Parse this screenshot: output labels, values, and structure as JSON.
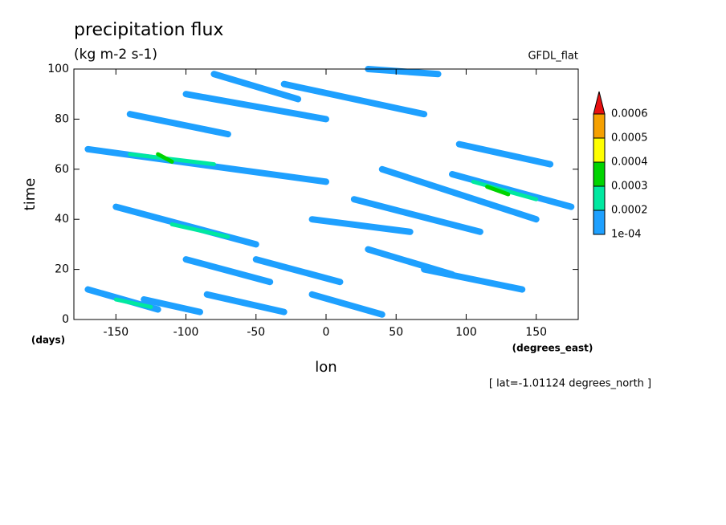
{
  "chart_data": {
    "type": "contour",
    "title": "precipitation flux",
    "subtitle": "(kg m-2 s-1)",
    "dataset": "GFDL_flat",
    "x_label": "lon",
    "x_units": "(degrees_east)",
    "y_label": "time",
    "y_units": "(days)",
    "note": "[ lat=-1.01124 degrees_north ]",
    "xlim": [
      -180,
      180
    ],
    "xticks": [
      -150,
      -100,
      -50,
      0,
      50,
      100,
      150
    ],
    "ylim": [
      0,
      100
    ],
    "yticks": [
      0,
      20,
      40,
      60,
      80,
      100
    ],
    "levels": [
      {
        "value": 0.0001,
        "label": "1e-04"
      },
      0.0002,
      0.0003,
      0.0004,
      0.0005,
      0.0006
    ],
    "colors": [
      "#1ea0ff",
      "#00e8a0",
      "#00d400",
      "#ffff00",
      "#f5a000",
      "#e81010"
    ],
    "streaks": [
      {
        "lon": [
          -170,
          -120
        ],
        "time": [
          12,
          4
        ],
        "value": 0.0001
      },
      {
        "lon": [
          -150,
          -125
        ],
        "time": [
          8,
          5
        ],
        "value": 0.0002
      },
      {
        "lon": [
          -130,
          -90
        ],
        "time": [
          8,
          3
        ],
        "value": 0.0001
      },
      {
        "lon": [
          -85,
          -30
        ],
        "time": [
          10,
          3
        ],
        "value": 0.0001
      },
      {
        "lon": [
          -10,
          40
        ],
        "time": [
          10,
          2
        ],
        "value": 0.0001
      },
      {
        "lon": [
          -100,
          -40
        ],
        "time": [
          24,
          15
        ],
        "value": 0.0001
      },
      {
        "lon": [
          -50,
          10
        ],
        "time": [
          24,
          15
        ],
        "value": 0.0001
      },
      {
        "lon": [
          30,
          90
        ],
        "time": [
          28,
          18
        ],
        "value": 0.0001
      },
      {
        "lon": [
          70,
          140
        ],
        "time": [
          20,
          12
        ],
        "value": 0.0001
      },
      {
        "lon": [
          -150,
          -50
        ],
        "time": [
          45,
          30
        ],
        "value": 0.0001
      },
      {
        "lon": [
          -110,
          -70
        ],
        "time": [
          38,
          33
        ],
        "value": 0.0002
      },
      {
        "lon": [
          -10,
          60
        ],
        "time": [
          40,
          35
        ],
        "value": 0.0001
      },
      {
        "lon": [
          20,
          110
        ],
        "time": [
          48,
          35
        ],
        "value": 0.0001
      },
      {
        "lon": [
          -170,
          0
        ],
        "time": [
          68,
          55
        ],
        "value": 0.0001
      },
      {
        "lon": [
          -140,
          -80
        ],
        "time": [
          66,
          62
        ],
        "value": 0.0002
      },
      {
        "lon": [
          -120,
          -110
        ],
        "time": [
          66,
          63
        ],
        "value": 0.0003
      },
      {
        "lon": [
          90,
          175
        ],
        "time": [
          58,
          45
        ],
        "value": 0.0001
      },
      {
        "lon": [
          105,
          150
        ],
        "time": [
          55,
          48
        ],
        "value": 0.0002
      },
      {
        "lon": [
          115,
          130
        ],
        "time": [
          53,
          50
        ],
        "value": 0.0003
      },
      {
        "lon": [
          95,
          160
        ],
        "time": [
          70,
          62
        ],
        "value": 0.0001
      },
      {
        "lon": [
          -140,
          -70
        ],
        "time": [
          82,
          74
        ],
        "value": 0.0001
      },
      {
        "lon": [
          -100,
          0
        ],
        "time": [
          90,
          80
        ],
        "value": 0.0001
      },
      {
        "lon": [
          -80,
          -20
        ],
        "time": [
          98,
          88
        ],
        "value": 0.0001
      },
      {
        "lon": [
          -30,
          70
        ],
        "time": [
          94,
          82
        ],
        "value": 0.0001
      },
      {
        "lon": [
          30,
          80
        ],
        "time": [
          100,
          98
        ],
        "value": 0.0001
      },
      {
        "lon": [
          40,
          150
        ],
        "time": [
          60,
          40
        ],
        "value": 0.0001
      }
    ]
  }
}
